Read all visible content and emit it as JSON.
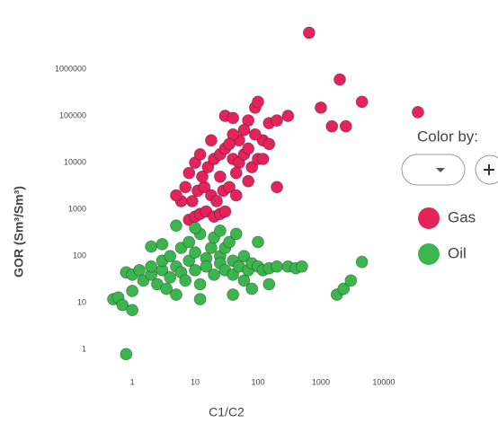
{
  "chart_data": {
    "type": "scatter",
    "x_label": "C1/C2",
    "y_label": "GOR (Sm³/Sm³)",
    "xscale": "log",
    "yscale": "log",
    "xlim": [
      0.25,
      40000
    ],
    "ylim": [
      0.4,
      8000000
    ],
    "xticks": [
      1,
      10,
      100,
      1000,
      10000
    ],
    "yticks": [
      1,
      10,
      100,
      1000,
      10000,
      100000,
      1000000
    ],
    "legend_title": "Color by:",
    "legend_position": "right",
    "series": [
      {
        "name": "Gas",
        "color": "#e3245c",
        "x": [
          650,
          2000,
          4500,
          1000,
          35000,
          1500,
          2500,
          30,
          40,
          70,
          90,
          100,
          150,
          200,
          300,
          120,
          200,
          8,
          10,
          12,
          15,
          20,
          25,
          30,
          9,
          11,
          14,
          18,
          22,
          28,
          35,
          45,
          6,
          7,
          8,
          10,
          13,
          16,
          20,
          25,
          30,
          40,
          50,
          60,
          70,
          80,
          100,
          50,
          40,
          60,
          35,
          5,
          12,
          25,
          45,
          70,
          150,
          18,
          120,
          90
        ],
        "values": [
          6000000,
          600000,
          200000,
          150000,
          120000,
          60000,
          60000,
          100000,
          90000,
          80000,
          150000,
          200000,
          70000,
          80000,
          100000,
          30000,
          3000,
          600,
          700,
          800,
          900,
          700,
          800,
          900,
          1500,
          2500,
          3000,
          2000,
          1500,
          2500,
          3000,
          2000,
          1500,
          3000,
          6000,
          10000,
          5000,
          8000,
          12000,
          15000,
          20000,
          12000,
          10000,
          15000,
          20000,
          8000,
          12000,
          30000,
          40000,
          50000,
          25000,
          2000,
          15000,
          5000,
          6000,
          4000,
          25000,
          30000,
          12000,
          40000
        ]
      },
      {
        "name": "Oil",
        "color": "#3db54e",
        "x": [
          0.5,
          0.6,
          0.7,
          1,
          0.8,
          1,
          1.3,
          1.5,
          2,
          2,
          2.5,
          3,
          3,
          3.5,
          4,
          4,
          5,
          5,
          6,
          6,
          7,
          8,
          8,
          10,
          10,
          12,
          12,
          15,
          15,
          18,
          20,
          20,
          25,
          25,
          30,
          30,
          35,
          40,
          40,
          50,
          60,
          60,
          70,
          80,
          100,
          120,
          150,
          200,
          300,
          400,
          500,
          1800,
          2300,
          3000,
          4500,
          2,
          1,
          0.8,
          5,
          10,
          25,
          45,
          80,
          150,
          40,
          100,
          12,
          3
        ],
        "values": [
          12,
          13,
          9,
          7,
          45,
          40,
          50,
          30,
          40,
          60,
          25,
          50,
          80,
          20,
          35,
          100,
          60,
          15,
          45,
          150,
          30,
          80,
          200,
          50,
          120,
          300,
          25,
          90,
          60,
          150,
          40,
          250,
          100,
          70,
          50,
          150,
          200,
          80,
          40,
          60,
          100,
          30,
          50,
          70,
          60,
          50,
          55,
          60,
          60,
          55,
          60,
          15,
          20,
          30,
          75,
          160,
          18,
          0.8,
          450,
          400,
          350,
          300,
          20,
          25,
          15,
          200,
          12,
          180
        ]
      }
    ]
  }
}
